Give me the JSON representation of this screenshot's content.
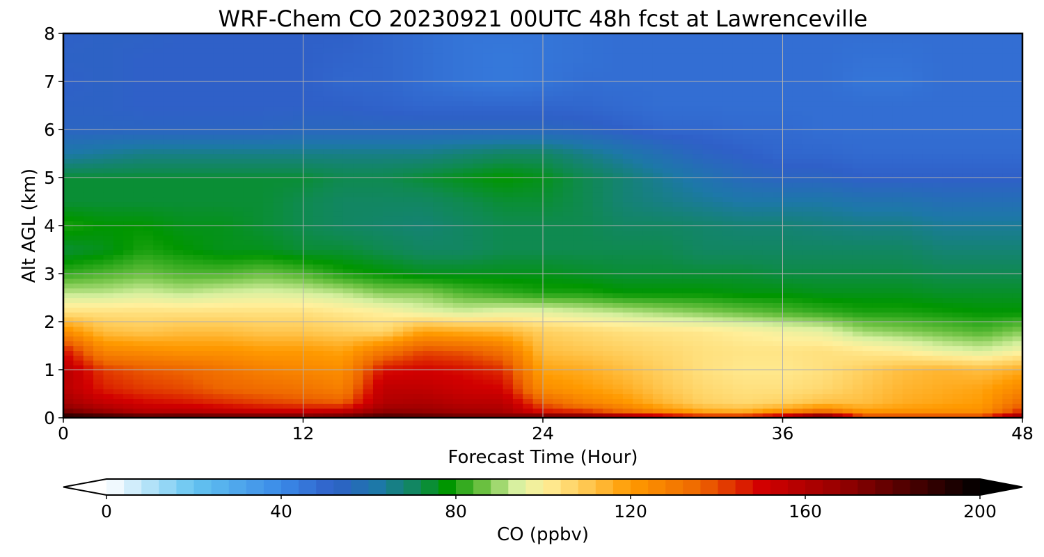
{
  "chart_data": {
    "type": "heatmap",
    "title": "WRF-Chem CO  20230921 00UTC 48h fcst at Lawrenceville",
    "xlabel": "Forecast Time (Hour)",
    "ylabel": "Alt AGL (km)",
    "xlim": [
      0,
      48
    ],
    "ylim": [
      0,
      8
    ],
    "x_ticks": [
      "0",
      "12",
      "24",
      "36",
      "48"
    ],
    "y_ticks": [
      "0",
      "1",
      "2",
      "3",
      "4",
      "5",
      "6",
      "7",
      "8"
    ],
    "grid": true,
    "x": [
      0,
      2,
      4,
      6,
      8,
      10,
      12,
      14,
      16,
      18,
      20,
      22,
      24,
      26,
      28,
      30,
      32,
      34,
      36,
      38,
      40,
      42,
      44,
      46,
      48
    ],
    "y": [
      0,
      0.1,
      0.3,
      0.6,
      1.0,
      1.4,
      1.8,
      2.2,
      2.6,
      3.0,
      3.5,
      4.0,
      4.5,
      5.0,
      5.5,
      6.0,
      6.5,
      7.0,
      7.5,
      8.0
    ],
    "z": [
      [
        200,
        196,
        194,
        194,
        190,
        188,
        186,
        186,
        190,
        186,
        182,
        180,
        192,
        188,
        178,
        168,
        160,
        160,
        170,
        196,
        150,
        150,
        150,
        150,
        178
      ],
      [
        178,
        170,
        160,
        160,
        158,
        156,
        156,
        160,
        172,
        170,
        166,
        164,
        150,
        148,
        138,
        128,
        120,
        118,
        128,
        140,
        124,
        124,
        124,
        124,
        148
      ],
      [
        165,
        155,
        150,
        148,
        145,
        142,
        140,
        138,
        160,
        162,
        158,
        158,
        138,
        128,
        122,
        114,
        108,
        106,
        108,
        112,
        112,
        116,
        118,
        120,
        135
      ],
      [
        158,
        146,
        142,
        140,
        136,
        134,
        132,
        128,
        156,
        156,
        152,
        150,
        124,
        120,
        116,
        110,
        106,
        104,
        104,
        106,
        110,
        114,
        116,
        118,
        126
      ],
      [
        158,
        142,
        138,
        136,
        132,
        128,
        126,
        124,
        148,
        150,
        148,
        144,
        118,
        116,
        112,
        108,
        104,
        102,
        102,
        104,
        108,
        112,
        114,
        112,
        116
      ],
      [
        148,
        126,
        124,
        122,
        122,
        120,
        120,
        118,
        130,
        140,
        138,
        132,
        112,
        110,
        108,
        106,
        104,
        103,
        103,
        104,
        102,
        100,
        96,
        94,
        98
      ],
      [
        124,
        112,
        110,
        112,
        112,
        110,
        110,
        108,
        106,
        118,
        116,
        114,
        108,
        106,
        104,
        103,
        102,
        100,
        98,
        96,
        90,
        88,
        86,
        84,
        88
      ],
      [
        104,
        104,
        104,
        104,
        104,
        104,
        104,
        102,
        100,
        96,
        94,
        96,
        96,
        94,
        92,
        90,
        88,
        86,
        84,
        82,
        80,
        80,
        79,
        78,
        78
      ],
      [
        92,
        92,
        94,
        92,
        94,
        95,
        94,
        92,
        88,
        88,
        84,
        82,
        80,
        80,
        78,
        78,
        78,
        77,
        77,
        76,
        76,
        76,
        75,
        75,
        75
      ],
      [
        82,
        84,
        86,
        84,
        84,
        86,
        84,
        80,
        78,
        76,
        76,
        76,
        76,
        75,
        74,
        74,
        74,
        74,
        73,
        73,
        73,
        73,
        72,
        72,
        72
      ],
      [
        74,
        76,
        80,
        78,
        76,
        76,
        74,
        74,
        72,
        70,
        70,
        72,
        72,
        72,
        72,
        72,
        70,
        70,
        70,
        70,
        70,
        70,
        68,
        68,
        68
      ],
      [
        80,
        78,
        78,
        76,
        76,
        74,
        72,
        70,
        69,
        68,
        70,
        72,
        72,
        72,
        70,
        70,
        69,
        68,
        68,
        67,
        66,
        66,
        64,
        64,
        64
      ],
      [
        74,
        74,
        74,
        74,
        74,
        74,
        72,
        70,
        70,
        70,
        72,
        74,
        74,
        72,
        68,
        66,
        64,
        62,
        62,
        62,
        60,
        60,
        58,
        58,
        58
      ],
      [
        74,
        74,
        74,
        74,
        74,
        74,
        74,
        72,
        72,
        74,
        76,
        78,
        76,
        72,
        68,
        64,
        60,
        56,
        54,
        54,
        52,
        52,
        52,
        52,
        52
      ],
      [
        62,
        64,
        66,
        66,
        66,
        66,
        66,
        66,
        66,
        66,
        68,
        70,
        70,
        66,
        62,
        58,
        54,
        52,
        50,
        50,
        49,
        49,
        49,
        49,
        49
      ],
      [
        54,
        54,
        54,
        54,
        54,
        54,
        55,
        55,
        55,
        55,
        55,
        55,
        55,
        54,
        52,
        50,
        50,
        49,
        49,
        48,
        48,
        48,
        48,
        48,
        48
      ],
      [
        53,
        53,
        52,
        52,
        52,
        52,
        52,
        52,
        51,
        50,
        50,
        50,
        50,
        50,
        49,
        48,
        48,
        48,
        48,
        48,
        48,
        48,
        48,
        48,
        48
      ],
      [
        52,
        53,
        52,
        52,
        52,
        52,
        52,
        50,
        50,
        48,
        46,
        45,
        46,
        48,
        48,
        48,
        48,
        48,
        48,
        48,
        46,
        46,
        48,
        48,
        48
      ],
      [
        53,
        53,
        52,
        52,
        52,
        52,
        52,
        51,
        50,
        48,
        46,
        45,
        46,
        47,
        48,
        48,
        48,
        48,
        48,
        48,
        47,
        47,
        48,
        48,
        48
      ],
      [
        52,
        53,
        53,
        52,
        52,
        52,
        52,
        52,
        50,
        48,
        46,
        46,
        46,
        47,
        48,
        48,
        48,
        48,
        48,
        48,
        48,
        48,
        48,
        48,
        48
      ]
    ],
    "colorbar": {
      "label": "CO  (ppbv)",
      "ticks": [
        "0",
        "40",
        "80",
        "120",
        "160",
        "200"
      ],
      "min": 0,
      "max": 200,
      "extend": "both"
    }
  },
  "colors": {
    "0": "#ffffff",
    "20": "#64c4f0",
    "40": "#3a8ae8",
    "52": "#2f60c8",
    "62": "#1d78a8",
    "72": "#0f8a50",
    "78": "#009600",
    "86": "#6ac040",
    "94": "#d8f0a0",
    "100": "#fff09c",
    "108": "#ffd060",
    "120": "#ff9a00",
    "136": "#ee6600",
    "150": "#d20000",
    "168": "#960000",
    "200": "#000000"
  }
}
